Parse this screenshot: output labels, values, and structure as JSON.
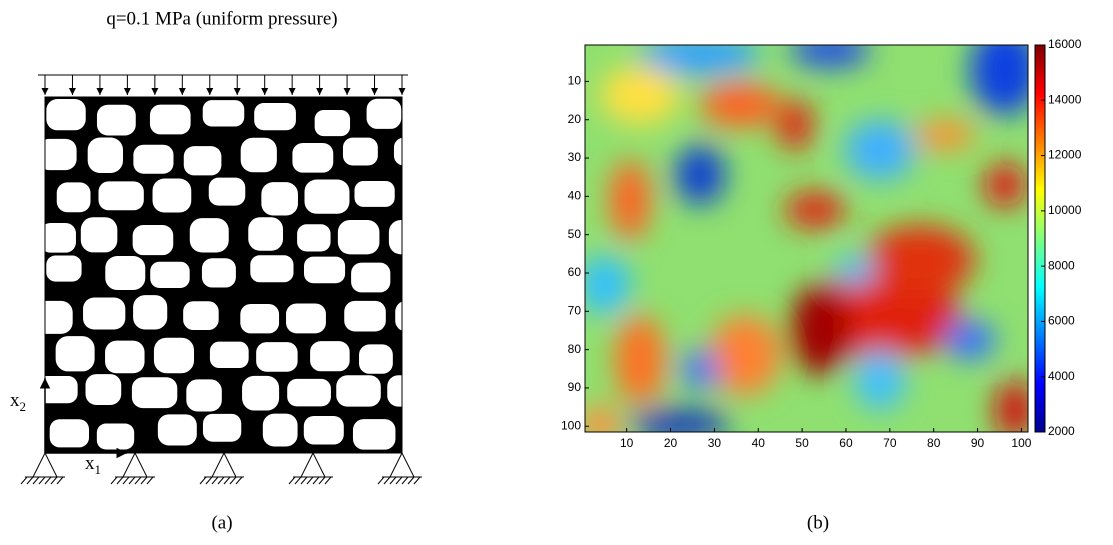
{
  "diagram": {
    "load_label": "q=0.1 MPa (uniform pressure)",
    "axis_vertical": {
      "base": "x",
      "sub": "2"
    },
    "axis_horizontal": {
      "base": "x",
      "sub": "1"
    },
    "caption": "(a)"
  },
  "chart_data": {
    "type": "heatmap",
    "caption": "(b)",
    "xlim": [
      0.5,
      101.5
    ],
    "ylim": [
      0.5,
      101.5
    ],
    "y_reversed": true,
    "xticks": [
      10,
      20,
      30,
      40,
      50,
      60,
      70,
      80,
      90,
      100
    ],
    "yticks": [
      10,
      20,
      30,
      40,
      50,
      60,
      70,
      80,
      90,
      100
    ],
    "clim": [
      2000,
      16000
    ],
    "cticks": [
      2000,
      4000,
      6000,
      8000,
      10000,
      12000,
      14000,
      16000
    ],
    "colormap": "jet"
  }
}
